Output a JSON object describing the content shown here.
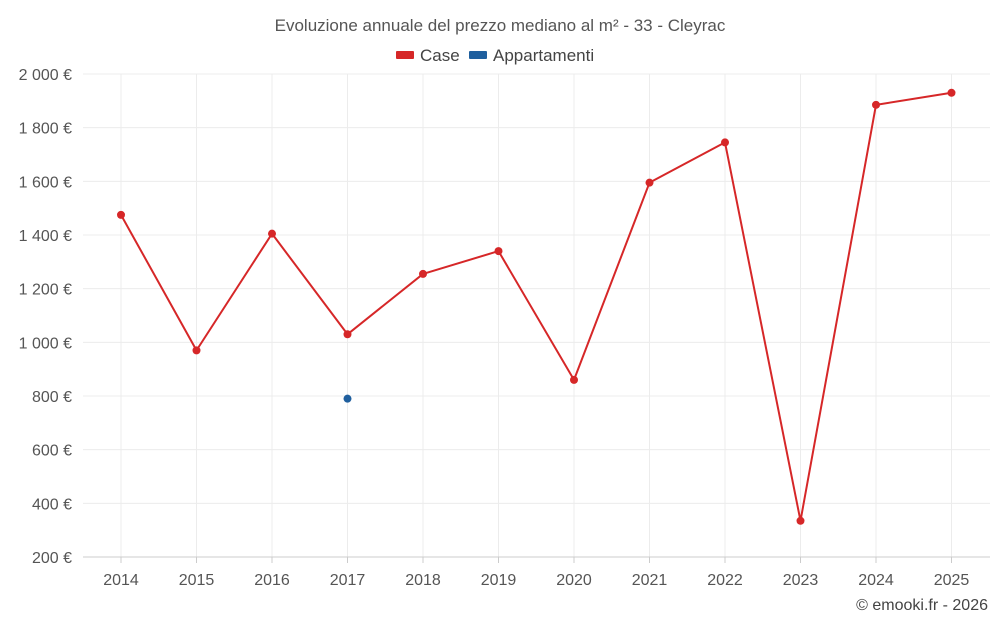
{
  "chart_data": {
    "type": "line",
    "title": "Evoluzione annuale del prezzo mediano al m² - 33 - Cleyrac",
    "categories": [
      "2014",
      "2015",
      "2016",
      "2017",
      "2018",
      "2019",
      "2020",
      "2021",
      "2022",
      "2023",
      "2024",
      "2025"
    ],
    "series": [
      {
        "name": "Case",
        "color": "#d62728",
        "values": [
          1475,
          970,
          1405,
          1030,
          1255,
          1340,
          860,
          1595,
          1745,
          335,
          1885,
          1930
        ]
      },
      {
        "name": "Appartamenti",
        "color": "#1f5f9e",
        "values": [
          null,
          null,
          null,
          790,
          null,
          null,
          null,
          null,
          null,
          null,
          null,
          null
        ]
      }
    ],
    "ylim": [
      200,
      2000
    ],
    "yticks": [
      200,
      400,
      600,
      800,
      1000,
      1200,
      1400,
      1600,
      1800,
      2000
    ],
    "ytick_labels": [
      "200 €",
      "400 €",
      "600 €",
      "800 €",
      "1 000 €",
      "1 200 €",
      "1 400 €",
      "1 600 €",
      "1 800 €",
      "2 000 €"
    ],
    "legend_position": "top-center",
    "grid": true,
    "credit": "© emooki.fr - 2026"
  }
}
